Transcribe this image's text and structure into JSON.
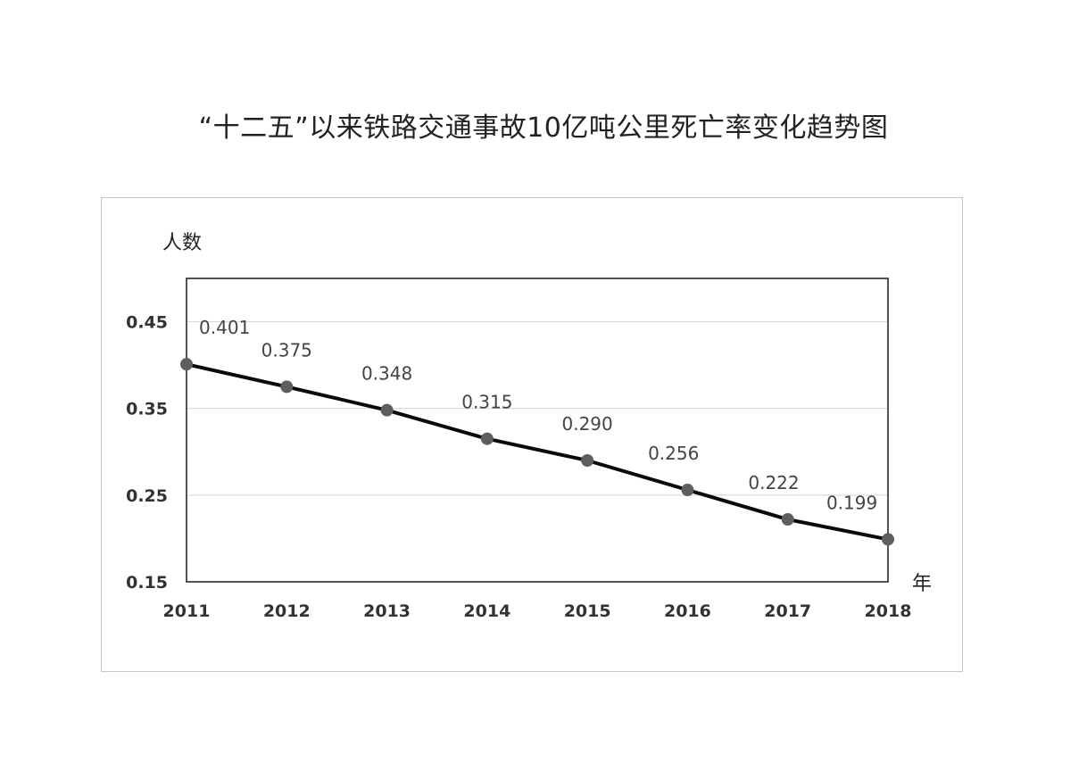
{
  "chart_data": {
    "type": "line",
    "title": "“十二五”以来铁路交通事故10亿吨公里死亡率变化趋势图",
    "ylabel": "人数",
    "xlabel": "年",
    "x": [
      "2011",
      "2012",
      "2013",
      "2014",
      "2015",
      "2016",
      "2017",
      "2018"
    ],
    "series": [
      {
        "values": [
          0.401,
          0.375,
          0.348,
          0.315,
          0.29,
          0.256,
          0.222,
          0.199
        ]
      }
    ],
    "data_labels": [
      "0.401",
      "0.375",
      "0.348",
      "0.315",
      "0.290",
      "0.256",
      "0.222",
      "0.199"
    ],
    "ylim": [
      0.15,
      0.5
    ],
    "yticks": [
      0.15,
      0.25,
      0.35,
      0.45
    ],
    "ytick_labels": [
      "0.15",
      "0.25",
      "0.35",
      "0.45"
    ],
    "grid": true,
    "colors": {
      "line": "#0a0a0a",
      "marker": "#5e5e5e",
      "grid": "#d4d4d4"
    }
  }
}
